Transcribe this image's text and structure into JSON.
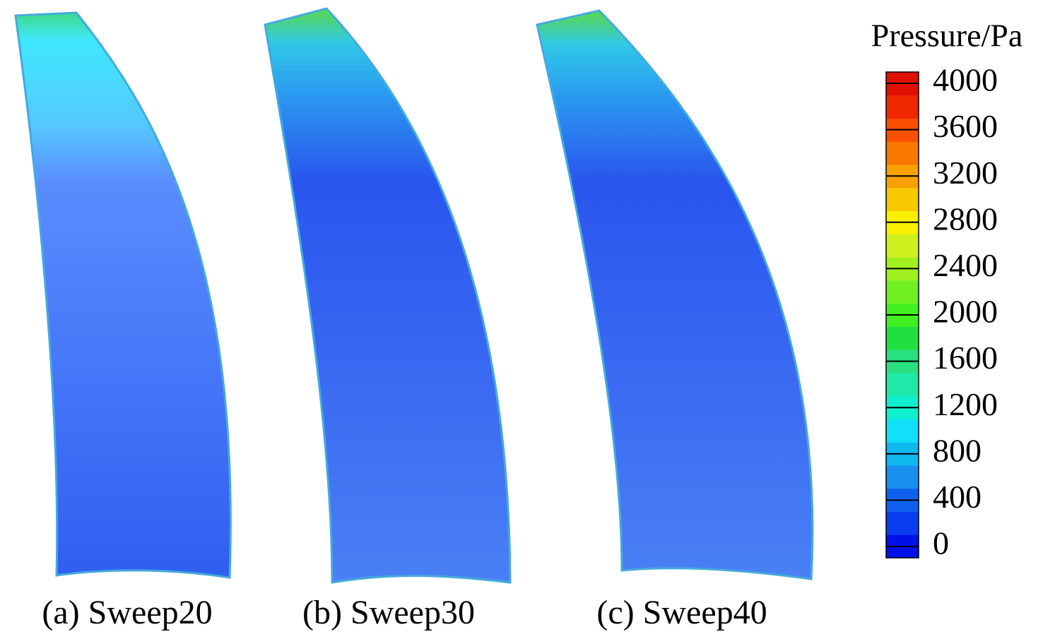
{
  "panels": [
    {
      "label": "(a) Sweep20"
    },
    {
      "label": "(b) Sweep30"
    },
    {
      "label": "(c) Sweep40"
    }
  ],
  "colorbar": {
    "title": "Pressure/Pa",
    "ticks": [
      4000,
      3600,
      3200,
      2800,
      2400,
      2000,
      1600,
      1200,
      800,
      400,
      0
    ]
  }
}
